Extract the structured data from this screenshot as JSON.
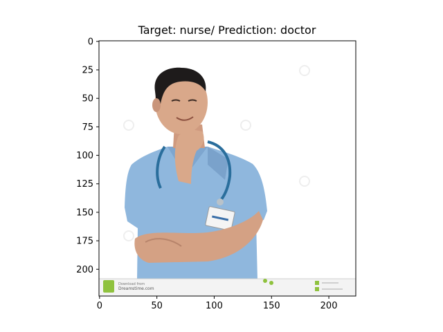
{
  "chart_data": {
    "type": "image",
    "title": "Target: nurse/ Prediction: doctor",
    "xlim": [
      -0.5,
      223.5
    ],
    "ylim": [
      223.5,
      -0.5
    ],
    "x_ticks": [
      0,
      50,
      100,
      150,
      200
    ],
    "y_ticks": [
      0,
      25,
      50,
      75,
      100,
      125,
      150,
      175,
      200
    ],
    "image_size": [
      224,
      224
    ],
    "image_description": "photo of a smiling man in light-blue scrubs with a stethoscope, hand on chin, arms crossed",
    "grid": false
  },
  "image_text": {
    "watermark_left_1": "Download from",
    "watermark_left_2": "Dreamstime.com"
  },
  "colors": {
    "scrubs": "#8fb7dd",
    "scrubs_shade": "#6f97c2",
    "skin": "#d9a88a",
    "hair": "#1e1b1b",
    "stethoscope": "#2a6e9c",
    "watermark_green": "#8fc23e"
  }
}
